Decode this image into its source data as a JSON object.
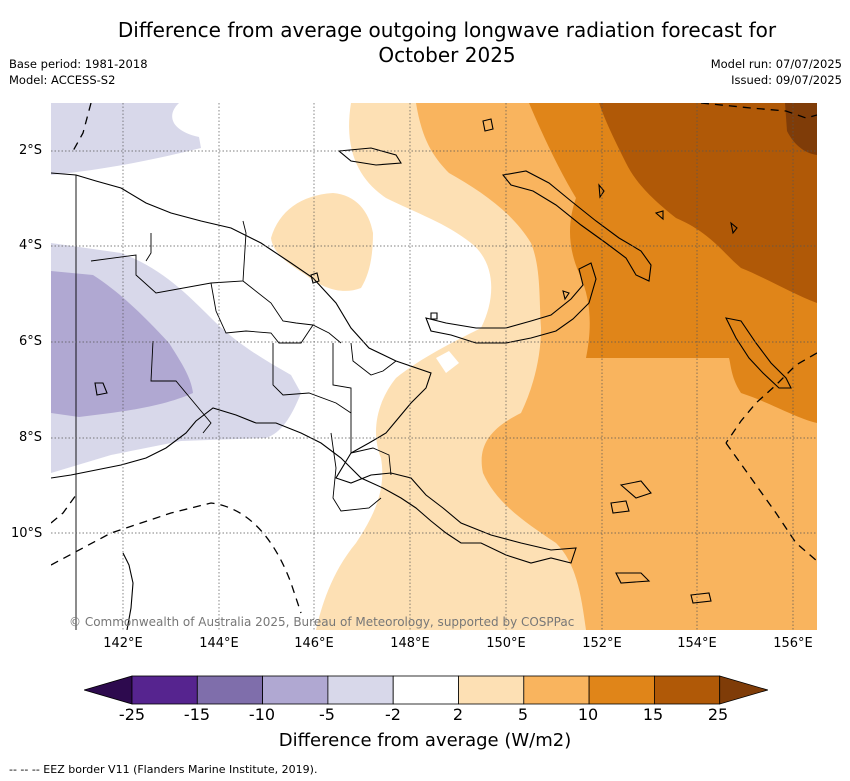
{
  "header": {
    "title_line1": "Difference from average outgoing longwave radiation forecast for",
    "title_line2": "October 2025",
    "base_period": "Base period: 1981-2018",
    "model": "Model: ACCESS-S2",
    "model_run": "Model run: 07/07/2025",
    "issued": "Issued: 09/07/2025"
  },
  "map": {
    "copyright": "© Commonwealth of Australia 2025, Bureau of Meteorology, supported by COSPPac",
    "lat_ticks": [
      "2°S",
      "4°S",
      "6°S",
      "8°S",
      "10°S"
    ],
    "lon_ticks": [
      "142°E",
      "144°E",
      "146°E",
      "148°E",
      "150°E",
      "152°E",
      "154°E",
      "156°E"
    ],
    "extent": {
      "lon_min": 140.5,
      "lon_max": 156.5,
      "lat_min": -12.0,
      "lat_max": -1.0
    }
  },
  "colorbar": {
    "title": "Difference from average (W/m2)",
    "labels": [
      "-25",
      "-15",
      "-10",
      "-5",
      "-2",
      "2",
      "5",
      "10",
      "15",
      "25"
    ],
    "colors": [
      "#2d0a4e",
      "#56248f",
      "#7f6eab",
      "#b0a8d2",
      "#d8d8ea",
      "#ffffff",
      "#fde0b4",
      "#f9b45e",
      "#e08519",
      "#b05907",
      "#7f3c08"
    ]
  },
  "legend": {
    "eez_line": "--  --  -- EEZ border V11 (Flanders Marine Institute, 2019)."
  }
}
